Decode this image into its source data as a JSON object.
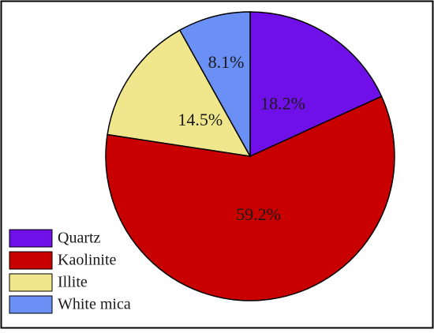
{
  "chart_data": {
    "type": "pie",
    "title": "",
    "slices": [
      {
        "label": "Quartz",
        "value": 18.2,
        "display": "18.2%",
        "color": "#7010e8"
      },
      {
        "label": "Kaolinite",
        "value": 59.2,
        "display": "59.2%",
        "color": "#c80000"
      },
      {
        "label": "Illite",
        "value": 14.5,
        "display": "14.5%",
        "color": "#f0e68c"
      },
      {
        "label": "White mica",
        "value": 8.1,
        "display": "8.1%",
        "color": "#6a8ff5"
      }
    ],
    "start_angle_deg": 0,
    "direction": "clockwise",
    "legend_position": "bottom-left",
    "frame": true
  }
}
